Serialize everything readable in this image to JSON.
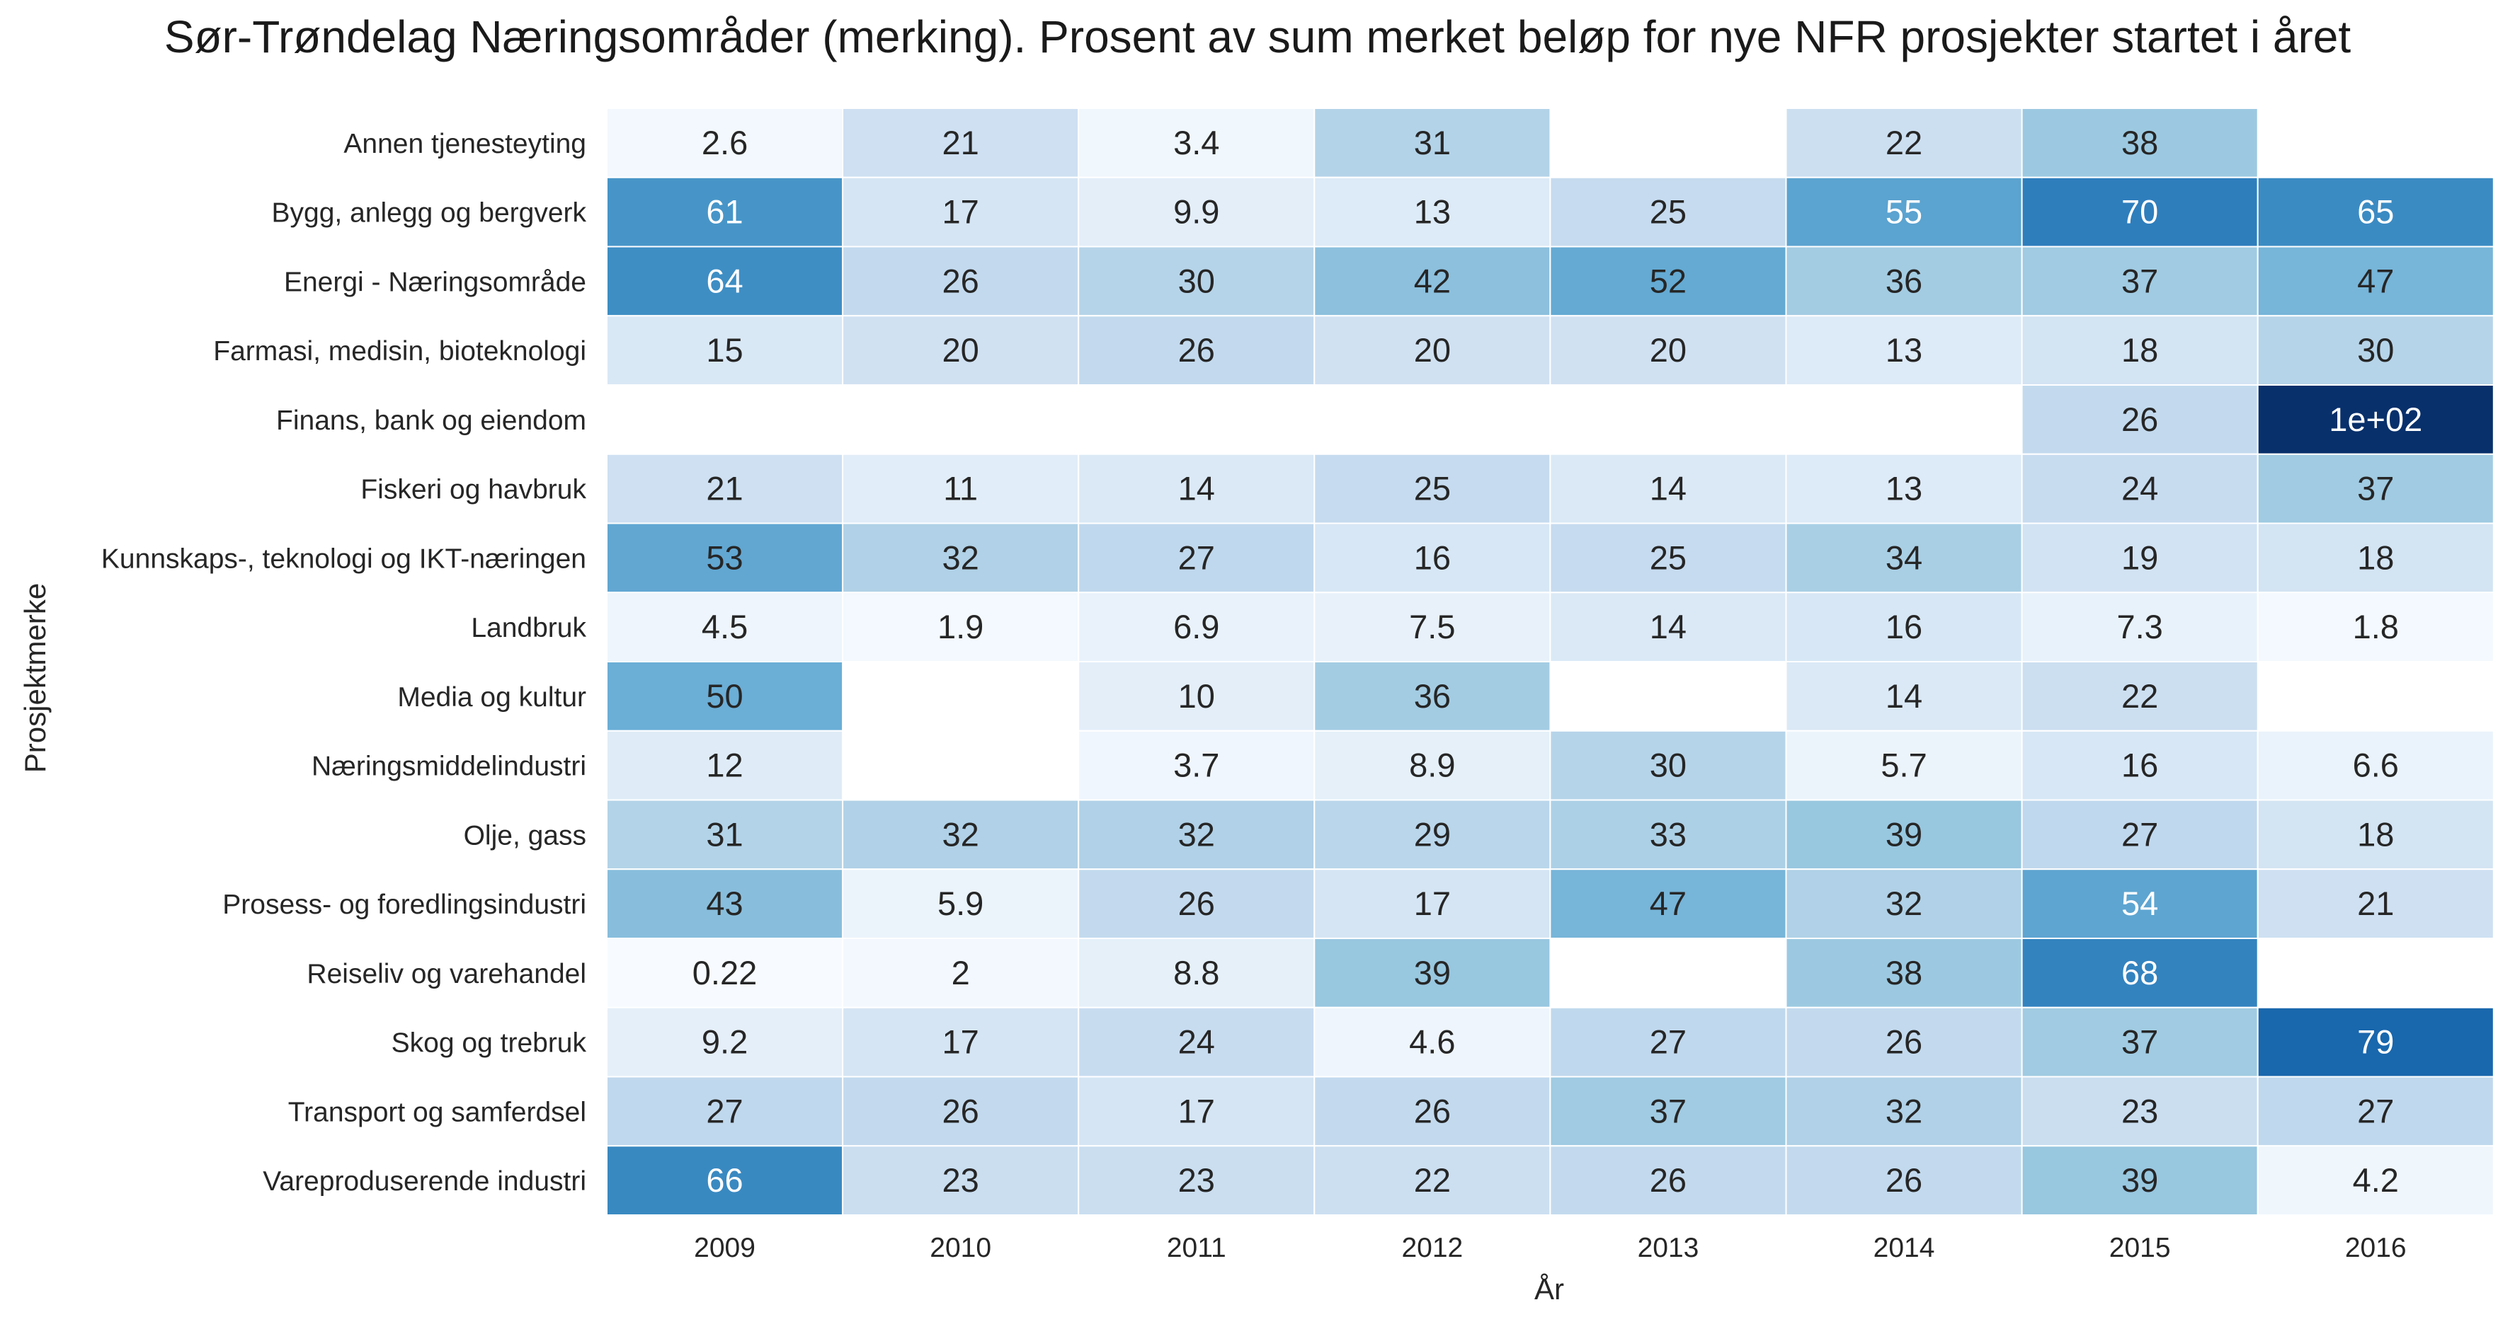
{
  "chart_data": {
    "type": "heatmap",
    "title": "Sør-Trøndelag Næringsområder (merking). Prosent av sum merket beløp for nye NFR prosjekter startet i året",
    "xlabel": "År",
    "ylabel": "Prosjektmerke",
    "colormap": "Blues",
    "vmin": 0,
    "vmax": 100,
    "grid_color": "#ffffff",
    "columns": [
      "2009",
      "2010",
      "2011",
      "2012",
      "2013",
      "2014",
      "2015",
      "2016"
    ],
    "rows": [
      "Annen tjenesteyting",
      "Bygg, anlegg og bergverk",
      "Energi - Næringsområde",
      "Farmasi, medisin, bioteknologi",
      "Finans, bank og eiendom",
      "Fiskeri og havbruk",
      "Kunnskaps-, teknologi og IKT-næringen",
      "Landbruk",
      "Media og kultur",
      "Næringsmiddelindustri",
      "Olje, gass",
      "Prosess- og foredlingsindustri",
      "Reiseliv og varehandel",
      "Skog og trebruk",
      "Transport og samferdsel",
      "Vareproduserende industri"
    ],
    "values": [
      [
        2.6,
        21,
        3.4,
        31,
        null,
        22,
        38,
        null
      ],
      [
        61,
        17,
        9.9,
        13,
        25,
        55,
        70,
        65
      ],
      [
        64,
        26,
        30,
        42,
        52,
        36,
        37,
        47
      ],
      [
        15,
        20,
        26,
        20,
        20,
        13,
        18,
        30
      ],
      [
        null,
        null,
        null,
        null,
        null,
        null,
        26,
        100
      ],
      [
        21,
        11,
        14,
        25,
        14,
        13,
        24,
        37
      ],
      [
        53,
        32,
        27,
        16,
        25,
        34,
        19,
        18
      ],
      [
        4.5,
        1.9,
        6.9,
        7.5,
        14,
        16,
        7.3,
        1.8
      ],
      [
        50,
        null,
        10,
        36,
        null,
        14,
        22,
        null
      ],
      [
        12,
        null,
        3.7,
        8.9,
        30,
        5.7,
        16,
        6.6
      ],
      [
        31,
        32,
        32,
        29,
        33,
        39,
        27,
        18
      ],
      [
        43,
        5.9,
        26,
        17,
        47,
        32,
        54,
        21
      ],
      [
        0.22,
        2,
        8.8,
        39,
        null,
        38,
        68,
        null
      ],
      [
        9.2,
        17,
        24,
        4.6,
        27,
        26,
        37,
        79
      ],
      [
        27,
        26,
        17,
        26,
        37,
        32,
        23,
        27
      ],
      [
        66,
        23,
        23,
        22,
        26,
        26,
        39,
        4.2
      ]
    ],
    "labels": [
      [
        "2.6",
        "21",
        "3.4",
        "31",
        "",
        "22",
        "38",
        ""
      ],
      [
        "61",
        "17",
        "9.9",
        "13",
        "25",
        "55",
        "70",
        "65"
      ],
      [
        "64",
        "26",
        "30",
        "42",
        "52",
        "36",
        "37",
        "47"
      ],
      [
        "15",
        "20",
        "26",
        "20",
        "20",
        "13",
        "18",
        "30"
      ],
      [
        "",
        "",
        "",
        "",
        "",
        "",
        "26",
        "1e+02"
      ],
      [
        "21",
        "11",
        "14",
        "25",
        "14",
        "13",
        "24",
        "37"
      ],
      [
        "53",
        "32",
        "27",
        "16",
        "25",
        "34",
        "19",
        "18"
      ],
      [
        "4.5",
        "1.9",
        "6.9",
        "7.5",
        "14",
        "16",
        "7.3",
        "1.8"
      ],
      [
        "50",
        "",
        "10",
        "36",
        "",
        "14",
        "22",
        ""
      ],
      [
        "12",
        "",
        "3.7",
        "8.9",
        "30",
        "5.7",
        "16",
        "6.6"
      ],
      [
        "31",
        "32",
        "32",
        "29",
        "33",
        "39",
        "27",
        "18"
      ],
      [
        "43",
        "5.9",
        "26",
        "17",
        "47",
        "32",
        "54",
        "21"
      ],
      [
        "0.22",
        "2",
        "8.8",
        "39",
        "",
        "38",
        "68",
        ""
      ],
      [
        "9.2",
        "17",
        "24",
        "4.6",
        "27",
        "26",
        "37",
        "79"
      ],
      [
        "27",
        "26",
        "17",
        "26",
        "37",
        "32",
        "23",
        "27"
      ],
      [
        "66",
        "23",
        "23",
        "22",
        "26",
        "26",
        "39",
        "4.2"
      ]
    ]
  }
}
